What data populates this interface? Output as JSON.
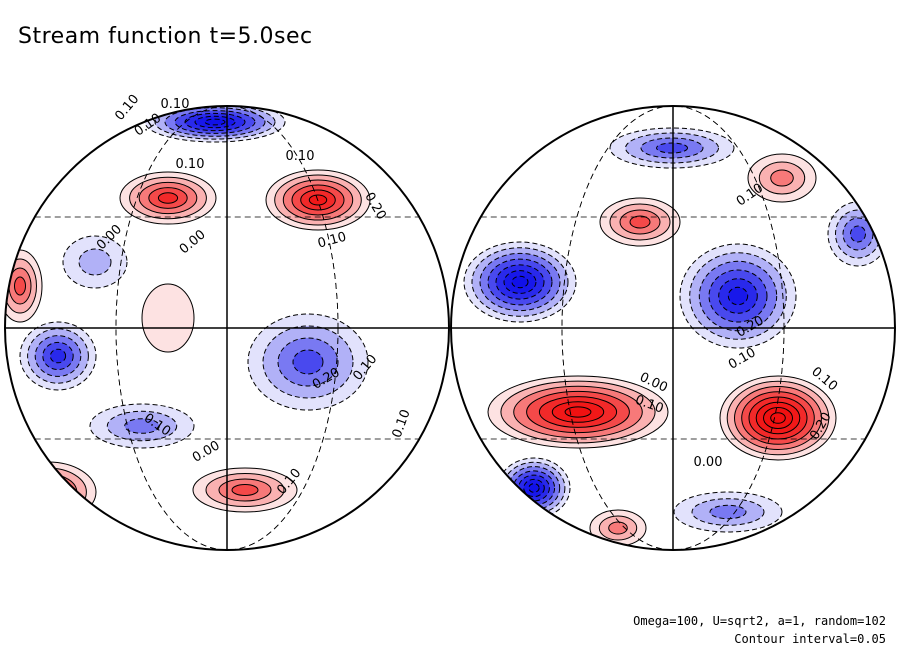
{
  "chart_data": {
    "type": "heatmap",
    "title": "Stream function t=5.0sec",
    "projection": "orthographic, two hemispheres",
    "color_scale": {
      "negative": "#1010e8",
      "zero": "#ffffff",
      "positive": "#f01010"
    },
    "contour_interval": 0.05,
    "hemispheres": [
      {
        "name": "left",
        "contour_labels": [
          "0.10",
          "0.10",
          "0.10",
          "0.20",
          "0.00",
          "0.00",
          "0.10",
          "0.20",
          "0.10",
          "0.10",
          "0.00",
          "0.10",
          "0.10",
          "0.10",
          "0.10"
        ],
        "extrema": [
          {
            "sign": "positive",
            "strength": 0.25
          },
          {
            "sign": "positive",
            "strength": 0.3
          },
          {
            "sign": "positive",
            "strength": 0.2
          },
          {
            "sign": "positive",
            "strength": 0.25
          },
          {
            "sign": "positive",
            "strength": 0.2
          },
          {
            "sign": "negative",
            "strength": 0.35
          },
          {
            "sign": "negative",
            "strength": 0.2
          },
          {
            "sign": "negative",
            "strength": 0.25
          },
          {
            "sign": "negative",
            "strength": 0.15
          },
          {
            "sign": "negative",
            "strength": 0.1
          },
          {
            "sign": "positive",
            "strength": 0.05
          }
        ]
      },
      {
        "name": "right",
        "contour_labels": [
          "0.10",
          "0.20",
          "0.10",
          "0.00",
          "0.10",
          "0.10",
          "0.20",
          "0.00"
        ],
        "extrema": [
          {
            "sign": "positive",
            "strength": 0.35
          },
          {
            "sign": "positive",
            "strength": 0.4
          },
          {
            "sign": "positive",
            "strength": 0.2
          },
          {
            "sign": "positive",
            "strength": 0.15
          },
          {
            "sign": "positive",
            "strength": 0.15
          },
          {
            "sign": "negative",
            "strength": 0.35
          },
          {
            "sign": "negative",
            "strength": 0.3
          },
          {
            "sign": "negative",
            "strength": 0.35
          },
          {
            "sign": "negative",
            "strength": 0.2
          },
          {
            "sign": "negative",
            "strength": 0.2
          },
          {
            "sign": "negative",
            "strength": 0.15
          }
        ]
      }
    ],
    "annotations": [
      "Omega=100, U=sqrt2, a=1, random=102",
      "Contour interval=0.05"
    ]
  }
}
